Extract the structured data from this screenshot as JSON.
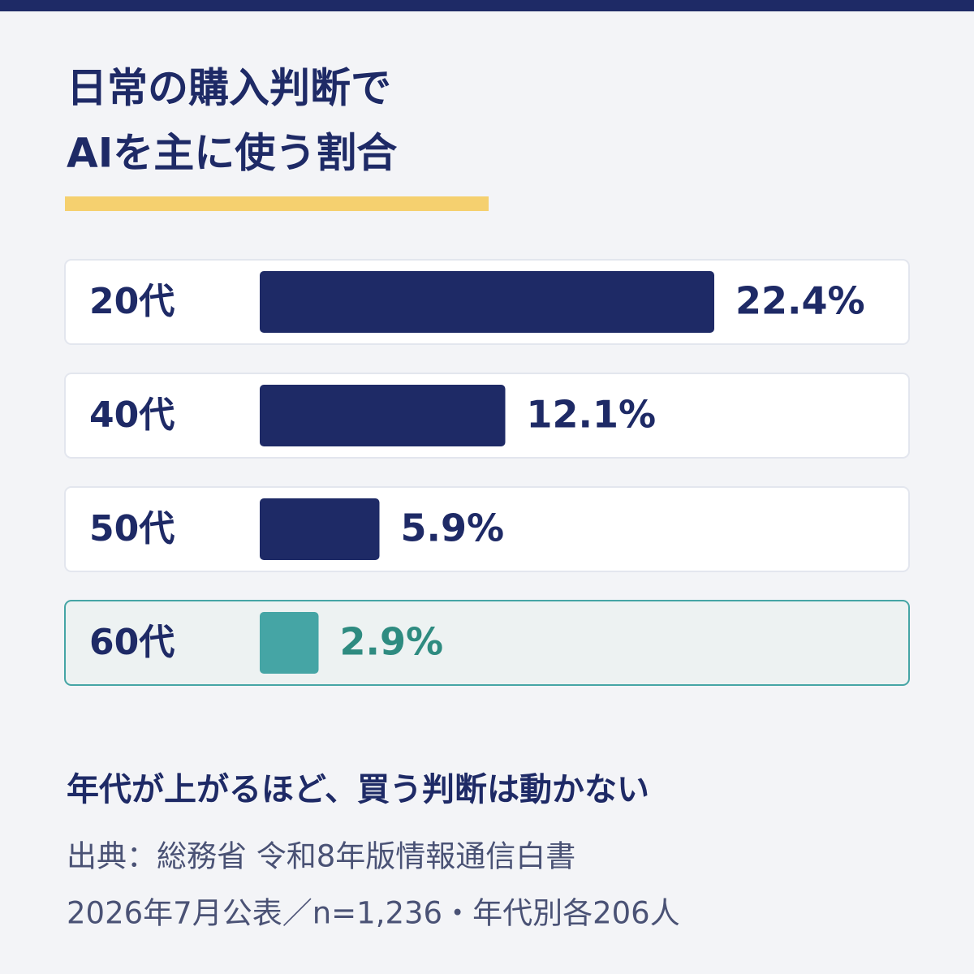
{
  "chart_data": {
    "type": "bar",
    "orientation": "horizontal",
    "title": [
      "日常の購入判断で",
      "AIを主に使う割合"
    ],
    "categories": [
      "20代",
      "40代",
      "50代",
      "60代"
    ],
    "values": [
      22.4,
      12.1,
      5.9,
      2.9
    ],
    "value_labels": [
      "22.4%",
      "12.1%",
      "5.9%",
      "2.9%"
    ],
    "colors": [
      "#1e2a66",
      "#1e2a66",
      "#1e2a66",
      "#45a5a5"
    ],
    "label_colors": [
      "#1e2a66",
      "#1e2a66",
      "#1e2a66",
      "#2e8b80"
    ],
    "highlight": [
      false,
      false,
      false,
      true
    ],
    "subtitle": "年代が上がるほど、買う判断は動かない",
    "source": [
      "出典：総務省 令和8年版情報通信白書",
      "2026年7月公表／n=1,236・年代別各206人"
    ]
  }
}
